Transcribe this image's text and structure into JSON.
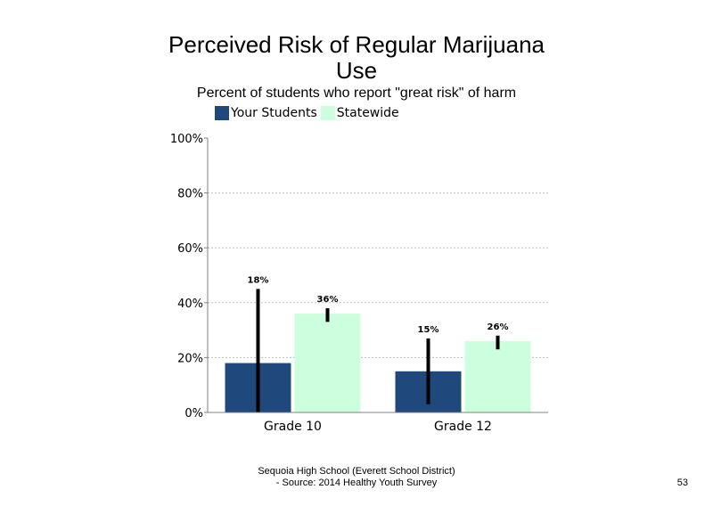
{
  "slide": {
    "footer_line1": "Sequoia High School (Everett School District)",
    "footer_line2": "- Source: 2014 Healthy  Youth Survey",
    "page_number": "53"
  },
  "colors": {
    "your_students": "#1f497d",
    "statewide": "#ccffdd",
    "error_bar": "#000000",
    "grid": "#bfbfbf",
    "axis": "#808080"
  },
  "chart_data": {
    "type": "bar",
    "title_line1": "Perceived Risk of Regular Marijuana",
    "title_line2": "Use",
    "subtitle": "Percent of students who report \"great risk\" of harm",
    "categories": [
      "Grade 10",
      "Grade 12"
    ],
    "series": [
      {
        "name": "Your Students",
        "values": [
          18,
          15
        ],
        "labels": [
          "18%",
          "15%"
        ],
        "error_low": [
          0,
          3
        ],
        "error_high": [
          45,
          27
        ]
      },
      {
        "name": "Statewide",
        "values": [
          36,
          26
        ],
        "labels": [
          "36%",
          "26%"
        ],
        "error_low": [
          33,
          23
        ],
        "error_high": [
          38,
          28
        ]
      }
    ],
    "ylim": [
      0,
      100
    ],
    "yticks": [
      0,
      20,
      40,
      60,
      80,
      100
    ],
    "ytick_labels": [
      "0%",
      "20%",
      "40%",
      "60%",
      "80%",
      "100%"
    ],
    "grid": true,
    "legend_position": "top"
  }
}
